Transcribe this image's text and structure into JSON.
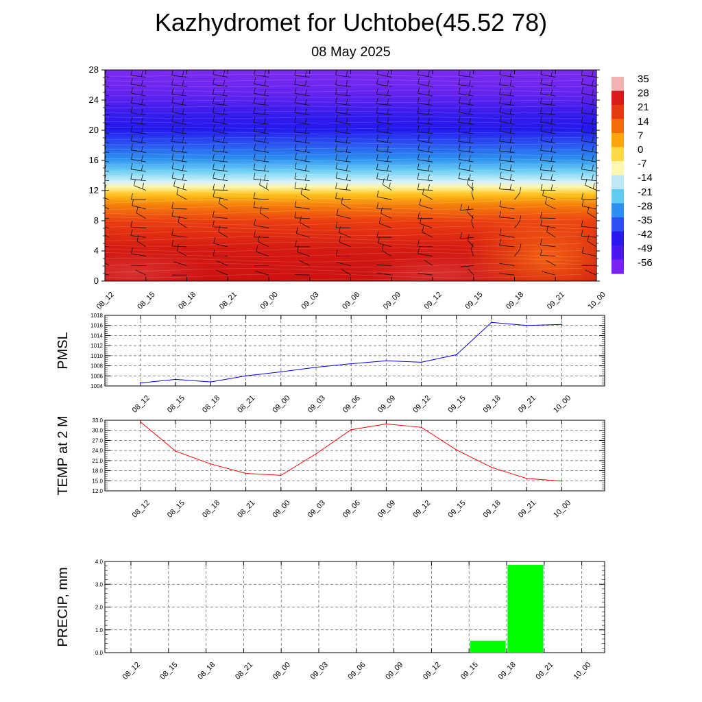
{
  "title": "Kazhydromet for Uchtobe(45.52 78)",
  "subtitle": "08 May 2025",
  "time_labels": [
    "08_12",
    "08_15",
    "08_18",
    "08_21",
    "09_00",
    "09_03",
    "09_06",
    "09_09",
    "09_12",
    "09_15",
    "09_18",
    "09_21",
    "10_00"
  ],
  "chart_data": [
    {
      "type": "heatmap",
      "description_axis": "vertical profile vs time",
      "categories": [
        "08_12",
        "08_15",
        "08_18",
        "08_21",
        "09_00",
        "09_03",
        "09_06",
        "09_09",
        "09_12",
        "09_15",
        "09_18",
        "09_21",
        "10_00"
      ],
      "y_ticks": [
        0,
        4,
        8,
        12,
        16,
        20,
        24,
        28
      ],
      "ylim": [
        0,
        28
      ],
      "colorbar_labels": [
        "35",
        "28",
        "21",
        "14",
        "7",
        "0",
        "-7",
        "-14",
        "-21",
        "-28",
        "-35",
        "-42",
        "-49",
        "-56"
      ],
      "colorbar_colors": [
        "#f4b3b3",
        "#d81b1b",
        "#e33a12",
        "#f26d0a",
        "#fda40e",
        "#ffd84a",
        "#fff6b0",
        "#bfe9f5",
        "#5ecbf1",
        "#2c90f0",
        "#2f4ff3",
        "#2a19ef",
        "#4a17ef",
        "#7a22ef"
      ],
      "legend_position": "right",
      "wind_barbs": true
    },
    {
      "type": "line",
      "ylabel": "PMSL",
      "categories": [
        "08_12",
        "08_15",
        "08_18",
        "08_21",
        "09_00",
        "09_03",
        "09_06",
        "09_09",
        "09_12",
        "09_15",
        "09_18",
        "09_21",
        "10_00"
      ],
      "values": [
        1004.6,
        1005.3,
        1004.8,
        1006.0,
        1006.8,
        1007.7,
        1008.4,
        1009.0,
        1008.7,
        1010.2,
        1016.6,
        1016.0,
        1016.2
      ],
      "ylim": [
        1004,
        1018
      ],
      "y_ticks": [
        "1004",
        "1006",
        "1008",
        "1010",
        "1012",
        "1014",
        "1016",
        "1018"
      ],
      "color": "#0000ff",
      "grid": true
    },
    {
      "type": "line",
      "ylabel": "TEMP at 2 M",
      "categories": [
        "08_12",
        "08_15",
        "08_18",
        "08_21",
        "09_00",
        "09_03",
        "09_06",
        "09_09",
        "09_12",
        "09_15",
        "09_18",
        "09_21",
        "10_00"
      ],
      "values": [
        32.5,
        23.8,
        20.0,
        17.2,
        16.6,
        23.0,
        30.2,
        31.9,
        30.9,
        24.2,
        19.0,
        15.7,
        14.9
      ],
      "ylim": [
        12,
        33
      ],
      "y_ticks": [
        "12.0",
        "15.0",
        "18.0",
        "21.0",
        "24.0",
        "27.0",
        "30.0",
        "33.0"
      ],
      "color": "#ff0000",
      "grid": true
    },
    {
      "type": "bar",
      "ylabel": "PRECIP, mm",
      "categories": [
        "08_12",
        "08_15",
        "08_18",
        "08_21",
        "09_00",
        "09_03",
        "09_06",
        "09_09",
        "09_12",
        "09_15",
        "09_18",
        "09_21",
        "10_00"
      ],
      "values": [
        0,
        0,
        0,
        0,
        0,
        0,
        0,
        0,
        0,
        0,
        0.52,
        3.85,
        0
      ],
      "ylim": [
        0,
        4
      ],
      "y_ticks": [
        "0.0",
        "1.0",
        "2.0",
        "3.0",
        "4.0"
      ],
      "color": "#00ff00",
      "grid": true
    }
  ]
}
